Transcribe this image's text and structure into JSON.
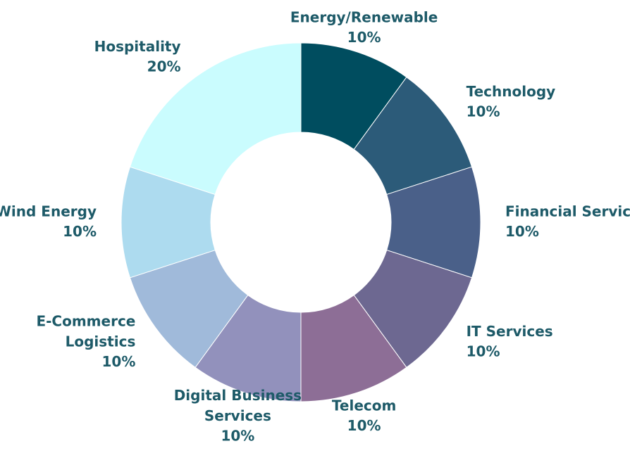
{
  "chart_data": {
    "type": "donut",
    "categories": [
      "Energy/Renewable",
      "Technology",
      "Financial Services",
      "IT Services",
      "Telecom",
      "Digital Business Services",
      "E-Commerce Logistics",
      "Wind Energy",
      "Hospitality"
    ],
    "values": [
      10,
      10,
      10,
      10,
      10,
      10,
      10,
      10,
      20
    ],
    "value_labels": [
      "10%",
      "10%",
      "10%",
      "10%",
      "10%",
      "10%",
      "10%",
      "10%",
      "20%"
    ],
    "colors": [
      "#004d5f",
      "#2c5b79",
      "#4a6089",
      "#6d6891",
      "#8d6e96",
      "#9291bc",
      "#a0bada",
      "#addbef",
      "#cafcfe"
    ]
  }
}
